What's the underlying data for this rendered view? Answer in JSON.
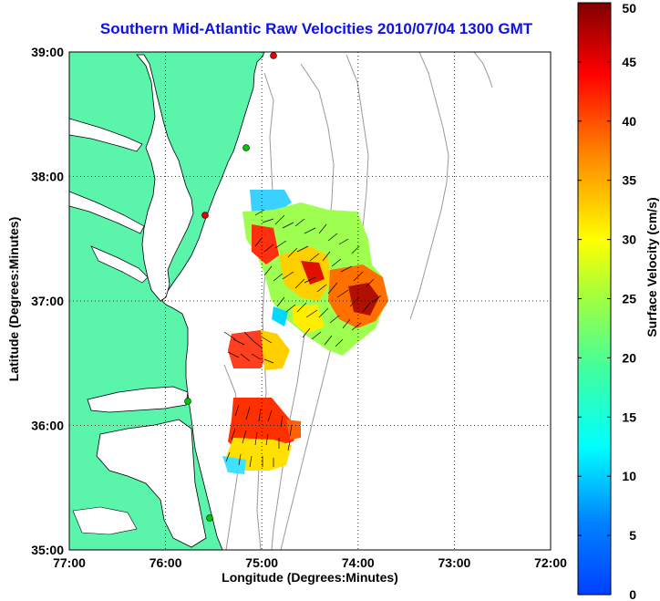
{
  "map": {
    "title": "Southern Mid-Atlantic Raw Velocities 2010/07/04 1300 GMT",
    "xlabel": "Longitude (Degrees:Minutes)",
    "ylabel": "Latitude (Degrees:Minutes)",
    "lon_ticks": [
      "77:00",
      "76:00",
      "75:00",
      "74:00",
      "73:00",
      "72:00"
    ],
    "lat_ticks": [
      "39:00",
      "38:00",
      "37:00",
      "36:00",
      "35:00"
    ],
    "lon_range": [
      "77:00",
      "72:00"
    ],
    "lat_range": [
      "35:00",
      "39:00"
    ],
    "grid": "dotted"
  },
  "colorbar": {
    "label": "Surface Velocity (cm/s)",
    "ticks": [
      "50",
      "45",
      "40",
      "35",
      "30",
      "25",
      "20",
      "15",
      "10",
      "5",
      "0"
    ],
    "range": [
      0,
      50
    ],
    "colormap": "jet"
  },
  "colors": {
    "land": "#5af5aa",
    "water": "#ffffff",
    "coast": "#000000",
    "bathymetry": "#999999",
    "title": "#1010e6",
    "station_green": "#00c800",
    "station_red": "#e60000"
  }
}
